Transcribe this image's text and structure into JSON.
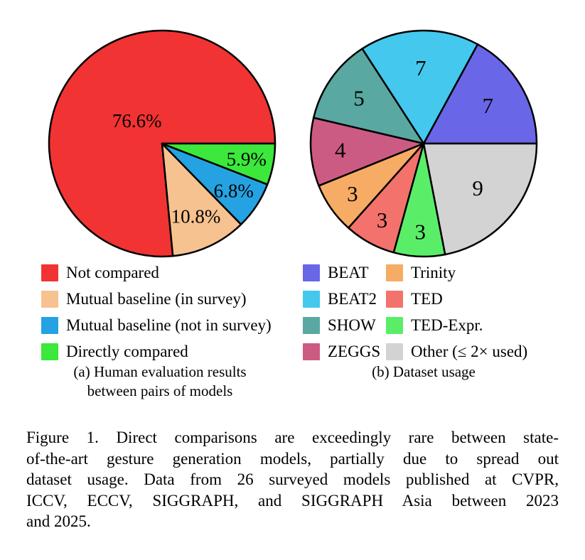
{
  "page": {
    "background": "#ffffff"
  },
  "chart_data": [
    {
      "type": "pie",
      "title": "(a) Human evaluation results between pairs of models",
      "categories": [
        "Not compared",
        "Mutual baseline (in survey)",
        "Mutual baseline (not in survey)",
        "Directly compared"
      ],
      "values": [
        76.6,
        10.8,
        6.8,
        5.9
      ],
      "value_unit": "percent",
      "slice_labels": [
        "76.6%",
        "10.8%",
        "6.8%",
        "5.9%"
      ],
      "colors": [
        "#f23333",
        "#f6c28f",
        "#25a2e2",
        "#3be83b"
      ],
      "start_angle_deg": 0,
      "direction": "counterclockwise",
      "label_radius": [
        0.3,
        0.71,
        0.76,
        0.76
      ],
      "legend_position": "below"
    },
    {
      "type": "pie",
      "title": "(b) Dataset usage",
      "categories": [
        "BEAT",
        "BEAT2",
        "SHOW",
        "ZEGGS",
        "Trinity",
        "TED",
        "TED-Expr.",
        "Other (≤ 2× used)"
      ],
      "values": [
        7,
        7,
        5,
        4,
        3,
        3,
        3,
        9
      ],
      "total": 41,
      "value_unit": "count",
      "slice_labels": [
        "7",
        "7",
        "5",
        "4",
        "3",
        "3",
        "3",
        "9"
      ],
      "colors": [
        "#6a66e8",
        "#44c8ee",
        "#5aa8a2",
        "#cc5b84",
        "#f6ac64",
        "#f3726c",
        "#5aee68",
        "#d3d3d3"
      ],
      "start_angle_deg": 0,
      "direction": "counterclockwise",
      "label_radius": [
        0.66,
        0.67,
        0.7,
        0.74,
        0.77,
        0.77,
        0.78,
        0.62
      ],
      "legend_position": "below",
      "legend_columns": [
        [
          0,
          1,
          2,
          3
        ],
        [
          4,
          5,
          6,
          7
        ]
      ]
    }
  ],
  "subcaptions": {
    "a": {
      "lines": [
        "(a) Human evaluation results",
        "between pairs of models"
      ]
    },
    "b": {
      "lines": [
        "(b) Dataset usage"
      ]
    }
  },
  "caption": {
    "lines": [
      "Figure 1. Direct comparisons are exceedingly rare between state-",
      "of-the-art gesture generation models, partially due to spread out",
      "dataset usage. Data from 26 surveyed models published at CVPR,",
      "ICCV, ECCV, SIGGRAPH, and SIGGRAPH Asia between 2023",
      "and 2025."
    ]
  }
}
